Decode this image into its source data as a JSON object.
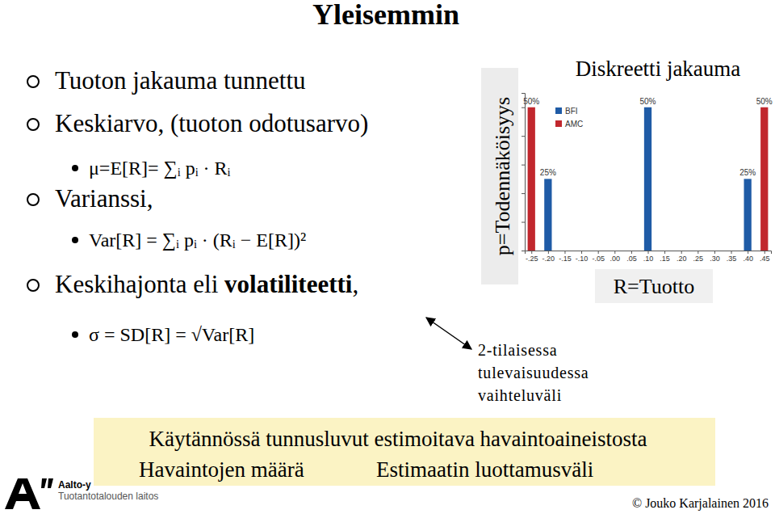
{
  "slide": {
    "title": "Yleisemmin",
    "bullets": [
      {
        "runs": [
          {
            "text": "Tuoton jakauma tunnettu"
          }
        ]
      },
      {
        "runs": [
          {
            "text": "Keskiarvo, (tuoton odotusarvo)"
          }
        ],
        "formula": "μ=E[R]= ∑ᵢ pᵢ · Rᵢ"
      },
      {
        "runs": [
          {
            "text": "Varianssi,"
          }
        ],
        "formula": "Var[R] = ∑ᵢ pᵢ · (Rᵢ − E[R])²"
      },
      {
        "runs": [
          {
            "text": "Keskihajonta eli "
          },
          {
            "text": "volatiliteetti",
            "bold": true
          },
          {
            "text": ","
          }
        ],
        "formula": "σ = SD[R] = √Var[R]"
      }
    ],
    "annotation": [
      "2-tilaisessa",
      "tulevaisuudessa",
      "vaihteluväli"
    ],
    "note": {
      "line1": "Käytännössä tunnusluvut estimoitava havaintoaineistosta",
      "line2": [
        "Havaintojen määrä",
        "Estimaatin luottamusväli"
      ]
    },
    "footer": {
      "institution": "Aalto-y",
      "department": "Tuotantotalouden laitos",
      "copyright": "© Jouko Karjalainen 2016"
    }
  },
  "chart_data": {
    "type": "bar",
    "title": "Diskreetti jakauma",
    "x_label": "R=Tuotto",
    "y_label": "p=Todennäköisyys",
    "xlim": [
      -0.27,
      0.47
    ],
    "xticks": [
      {
        "value": -0.25,
        "label": "-.25"
      },
      {
        "value": -0.2,
        "label": "-.20"
      },
      {
        "value": -0.15,
        "label": "-.15"
      },
      {
        "value": -0.1,
        "label": "-.10"
      },
      {
        "value": -0.05,
        "label": "-.05"
      },
      {
        "value": 0,
        "label": ".00"
      },
      {
        "value": 0.05,
        "label": ".05"
      },
      {
        "value": 0.1,
        "label": ".10"
      },
      {
        "value": 0.15,
        "label": ".15"
      },
      {
        "value": 0.2,
        "label": ".20"
      },
      {
        "value": 0.25,
        "label": ".25"
      },
      {
        "value": 0.3,
        "label": ".30"
      },
      {
        "value": 0.35,
        "label": ".35"
      },
      {
        "value": 0.4,
        "label": ".40"
      },
      {
        "value": 0.45,
        "label": ".45"
      }
    ],
    "ylim": [
      0,
      55
    ],
    "yticks": [
      0,
      10,
      20,
      30,
      40,
      50
    ],
    "tick_labels": "x",
    "legend": "upper left",
    "data_labels": true,
    "series": [
      {
        "name": "BFI",
        "color": "#1f5ba6",
        "x": [
          -0.2,
          0.1,
          0.4
        ],
        "values": [
          25,
          50,
          25
        ],
        "value_labels": [
          "25%",
          "50%",
          "25%"
        ]
      },
      {
        "name": "AMC",
        "color": "#c1272d",
        "x": [
          -0.25,
          0.45
        ],
        "values": [
          50,
          50
        ],
        "value_labels": [
          "50%",
          "50%"
        ]
      }
    ]
  }
}
